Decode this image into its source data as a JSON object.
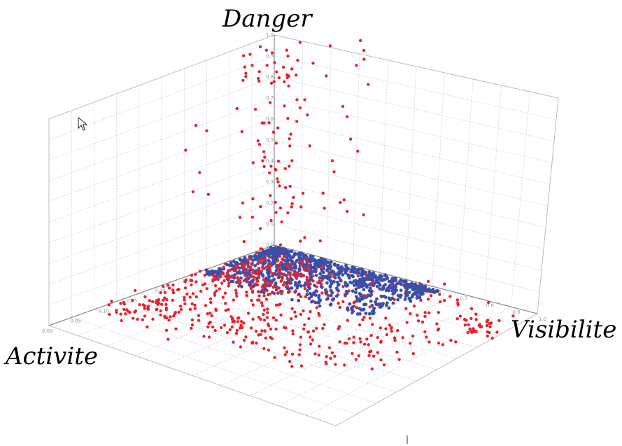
{
  "chart_data": {
    "type": "scatter",
    "dimensions": "3d",
    "axes": {
      "x": {
        "label": "Activite",
        "lim": [
          0,
          0.4
        ]
      },
      "y": {
        "label": "Visibilite",
        "lim": [
          0,
          1
        ]
      },
      "z": {
        "label": "Danger",
        "lim": [
          0,
          1
        ]
      }
    },
    "grid": true,
    "series": [
      {
        "color": "#3b4fa8",
        "cluster": "floor-wedge"
      },
      {
        "color": "#e8232f",
        "cluster": "spread"
      }
    ]
  }
}
